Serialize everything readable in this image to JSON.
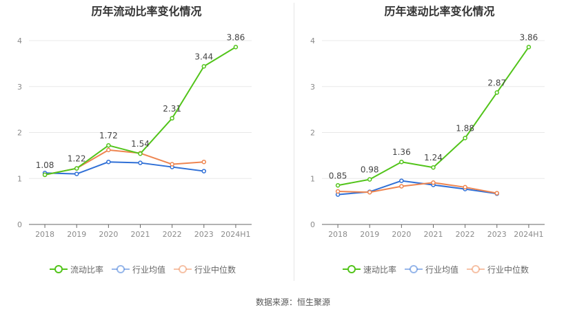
{
  "chart_data": [
    {
      "type": "line",
      "title": "历年流动比率变化情况",
      "categories": [
        "2018",
        "2019",
        "2020",
        "2021",
        "2022",
        "2023",
        "2024H1"
      ],
      "ylim": [
        0,
        4
      ],
      "yticks": [
        0,
        1,
        2,
        3,
        4
      ],
      "grid": true,
      "legend_position": "bottom",
      "series": [
        {
          "name": "流动比率",
          "color": "#52c41a",
          "values": [
            1.08,
            1.22,
            1.72,
            1.54,
            2.31,
            3.44,
            3.86
          ],
          "labels": [
            "1.08",
            "1.22",
            "1.72",
            "1.54",
            "2.31",
            "3.44",
            "3.86"
          ]
        },
        {
          "name": "行业均值",
          "color": "#2f6fd6",
          "values": [
            1.12,
            1.1,
            1.36,
            1.34,
            1.25,
            1.16,
            null
          ]
        },
        {
          "name": "行业中位数",
          "color": "#ee8550",
          "values": [
            1.08,
            1.22,
            1.62,
            1.55,
            1.31,
            1.36,
            null
          ]
        }
      ]
    },
    {
      "type": "line",
      "title": "历年速动比率变化情况",
      "categories": [
        "2018",
        "2019",
        "2020",
        "2021",
        "2022",
        "2023",
        "2024H1"
      ],
      "ylim": [
        0,
        4
      ],
      "yticks": [
        0,
        1,
        2,
        3,
        4
      ],
      "grid": true,
      "legend_position": "bottom",
      "series": [
        {
          "name": "速动比率",
          "color": "#52c41a",
          "values": [
            0.85,
            0.98,
            1.36,
            1.24,
            1.88,
            2.87,
            3.86
          ],
          "labels": [
            "0.85",
            "0.98",
            "1.36",
            "1.24",
            "1.88",
            "2.87",
            "3.86"
          ]
        },
        {
          "name": "行业均值",
          "color": "#2f6fd6",
          "values": [
            0.65,
            0.71,
            0.95,
            0.86,
            0.77,
            0.67,
            null
          ]
        },
        {
          "name": "行业中位数",
          "color": "#ee8550",
          "values": [
            0.72,
            0.7,
            0.83,
            0.91,
            0.81,
            0.68,
            null
          ]
        }
      ]
    }
  ],
  "footer": {
    "source": "数据来源：恒生聚源"
  }
}
